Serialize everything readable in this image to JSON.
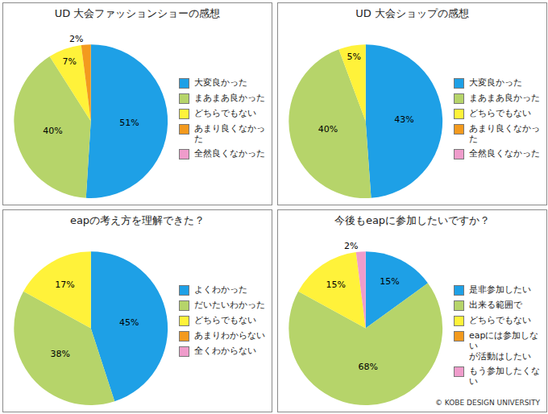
{
  "chart_data": [
    {
      "type": "pie",
      "title": "UD 大会ファッションショーの感想",
      "categories": [
        "大変良かった",
        "まあまあ良かった",
        "どちらでもない",
        "あまり良くなかった",
        "全然良くなかった"
      ],
      "values": [
        51,
        40,
        7,
        2,
        0
      ],
      "value_labels": [
        "51%",
        "40%",
        "7%",
        "2%",
        null
      ],
      "colors": [
        "#1ea0e6",
        "#b6d46a",
        "#fff23a",
        "#f39a1e",
        "#ef9ccb"
      ],
      "data_labels": true,
      "legend": "right"
    },
    {
      "type": "pie",
      "title": "UD 大会ショップの感想",
      "categories": [
        "大変良かった",
        "まあまあ良かった",
        "どちらでもない",
        "あまり良くなかった",
        "全然良くなかった"
      ],
      "values": [
        43,
        40,
        5,
        0,
        0
      ],
      "value_labels": [
        "43%",
        "40%",
        "5%",
        null,
        null
      ],
      "colors": [
        "#1ea0e6",
        "#b6d46a",
        "#fff23a",
        "#f39a1e",
        "#ef9ccb"
      ],
      "data_labels": true,
      "legend": "right"
    },
    {
      "type": "pie",
      "title": "eapの考え方を理解できた？",
      "categories": [
        "よくわかった",
        "だいたいわかった",
        "どちらでもない",
        "あまりわからない",
        "全くわからない"
      ],
      "values": [
        45,
        38,
        17,
        0,
        0
      ],
      "value_labels": [
        "45%",
        "38%",
        "17%",
        null,
        null
      ],
      "colors": [
        "#1ea0e6",
        "#b6d46a",
        "#fff23a",
        "#f39a1e",
        "#ef9ccb"
      ],
      "data_labels": true,
      "legend": "right"
    },
    {
      "type": "pie",
      "title": "今後もeapに参加したいですか？",
      "categories": [
        "是非参加したい",
        "出来る範囲で",
        "どちらでもない",
        "eapには参加しない\nが活動はしたい",
        "もう参加したくない"
      ],
      "values": [
        15,
        68,
        15,
        0,
        2
      ],
      "value_labels": [
        "15%",
        "68%",
        "15%",
        null,
        "2%"
      ],
      "colors": [
        "#1ea0e6",
        "#b6d46a",
        "#fff23a",
        "#f39a1e",
        "#ef9ccb"
      ],
      "data_labels": true,
      "legend": "right"
    }
  ],
  "credit": "© KOBE DESIGN UNIVERSITY"
}
